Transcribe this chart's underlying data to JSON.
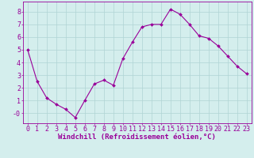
{
  "x": [
    0,
    1,
    2,
    3,
    4,
    5,
    6,
    7,
    8,
    9,
    10,
    11,
    12,
    13,
    14,
    15,
    16,
    17,
    18,
    19,
    20,
    21,
    22,
    23
  ],
  "y": [
    5.0,
    2.5,
    1.2,
    0.7,
    0.3,
    -0.35,
    1.0,
    2.3,
    2.6,
    2.2,
    4.3,
    5.6,
    6.8,
    7.0,
    7.0,
    8.2,
    7.8,
    7.0,
    6.1,
    5.9,
    5.3,
    4.5,
    3.7,
    3.1
  ],
  "line_color": "#990099",
  "marker": "D",
  "marker_size": 2,
  "bg_color": "#d4eeed",
  "grid_color": "#b0d4d4",
  "xlabel": "Windchill (Refroidissement éolien,°C)",
  "xlabel_color": "#990099",
  "xlabel_fontsize": 6.5,
  "tick_color": "#990099",
  "tick_fontsize": 6,
  "xlim": [
    -0.5,
    23.5
  ],
  "ylim": [
    -0.8,
    8.8
  ],
  "yticks": [
    0,
    1,
    2,
    3,
    4,
    5,
    6,
    7,
    8
  ],
  "ytick_labels": [
    "-0",
    "1",
    "2",
    "3",
    "4",
    "5",
    "6",
    "7",
    "8"
  ],
  "xticks": [
    0,
    1,
    2,
    3,
    4,
    5,
    6,
    7,
    8,
    9,
    10,
    11,
    12,
    13,
    14,
    15,
    16,
    17,
    18,
    19,
    20,
    21,
    22,
    23
  ]
}
